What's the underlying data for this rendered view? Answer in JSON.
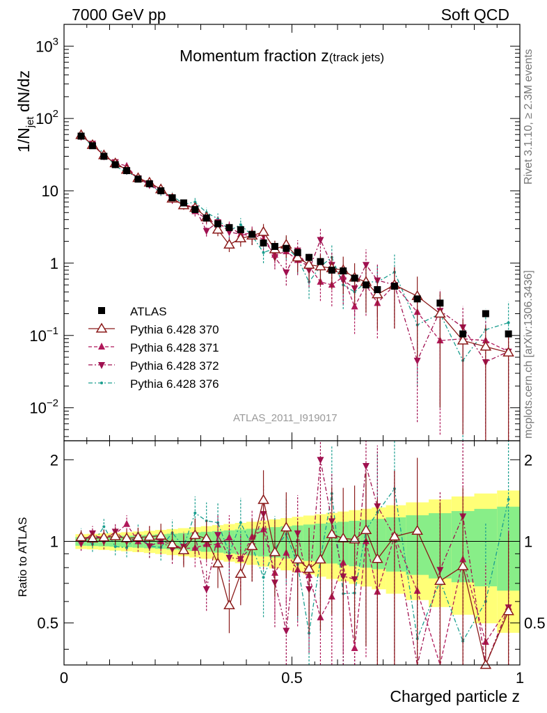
{
  "header": {
    "left": "7000 GeV pp",
    "right": "Soft QCD"
  },
  "side": {
    "rivet": "Rivet 3.1.10, ≥ 2.3M events",
    "mcplots": "mcplots.cern.ch [arXiv:1306.3436]"
  },
  "chart_data": {
    "type": "scatter",
    "title": "Momentum fraction z",
    "title_sub": "(track jets)",
    "ylabel_main": "1/N",
    "ylabel_sub": "jet",
    "ylabel_tail": " dN/dz",
    "ylabel_ratio": "Ratio to ATLAS",
    "xlabel": "Charged particle z",
    "watermark": "ATLAS_2011_I919017",
    "xlim": [
      0,
      1
    ],
    "ylim_main": [
      0.0035,
      2000
    ],
    "ylim_ratio": [
      0.35,
      2.35
    ],
    "y_scale": "log",
    "x_ticks": [
      "0",
      "0.5",
      "1"
    ],
    "y_ticks_main": [
      {
        "v": 0.01,
        "base": "10",
        "exp": "−2"
      },
      {
        "v": 0.1,
        "base": "10",
        "exp": "−1"
      },
      {
        "v": 1,
        "label": "1"
      },
      {
        "v": 10,
        "label": "10"
      },
      {
        "v": 100,
        "base": "10",
        "exp": "2"
      },
      {
        "v": 1000,
        "base": "10",
        "exp": "3"
      }
    ],
    "y_ticks_ratio": [
      "0.5",
      "1",
      "2"
    ],
    "legend_position": "lower-left",
    "x": [
      0.0375,
      0.0625,
      0.0875,
      0.1125,
      0.1375,
      0.1625,
      0.1875,
      0.2125,
      0.2375,
      0.2625,
      0.2875,
      0.3125,
      0.3375,
      0.3625,
      0.3875,
      0.4125,
      0.4375,
      0.4625,
      0.4875,
      0.5125,
      0.5375,
      0.5625,
      0.5875,
      0.6125,
      0.6375,
      0.6625,
      0.6875,
      0.725,
      0.775,
      0.825,
      0.875,
      0.925,
      0.975
    ],
    "series": [
      {
        "name": "ATLAS",
        "color": "#000000",
        "marker": "square",
        "values": [
          57,
          42,
          30,
          23,
          19,
          14.5,
          12.5,
          10,
          8,
          6.8,
          5.5,
          4.2,
          3.5,
          3.1,
          2.9,
          2.5,
          1.9,
          1.7,
          1.6,
          1.4,
          1.2,
          1.05,
          0.8,
          0.78,
          0.62,
          0.5,
          0.43,
          0.48,
          0.32,
          0.28,
          0.105,
          0.2,
          0.105
        ]
      },
      {
        "name": "Pythia 6.428 370",
        "color": "#8b1a1a",
        "marker": "open-triangle-up",
        "line": "solid",
        "values": [
          59,
          43,
          31,
          24,
          19.5,
          15,
          13,
          10.5,
          7.8,
          6.3,
          5.8,
          4.3,
          2.9,
          1.8,
          2.2,
          2.4,
          2.7,
          1.55,
          1.8,
          1.2,
          0.95,
          0.9,
          0.85,
          0.8,
          0.63,
          0.55,
          0.37,
          0.5,
          0.35,
          0.2,
          0.085,
          0.07,
          0.058
        ]
      },
      {
        "name": "Pythia 6.428 371",
        "color": "#b0185a",
        "marker": "triangle-up",
        "line": "dashed",
        "values": [
          58,
          44,
          31,
          24.5,
          22,
          14.5,
          13,
          10,
          7.8,
          6.4,
          5.2,
          4.1,
          3.4,
          3.2,
          2.5,
          2.6,
          2.1,
          1.3,
          1.45,
          1.1,
          0.9,
          0.55,
          0.5,
          0.65,
          0.25,
          0.5,
          0.28,
          0.5,
          0.21,
          0.085,
          0.09,
          0.085,
          0.06
        ]
      },
      {
        "name": "Pythia 6.428 372",
        "color": "#a01050",
        "marker": "triangle-down",
        "line": "dashdot",
        "values": [
          56,
          45,
          30,
          25,
          19,
          15,
          12,
          10,
          7.5,
          6.5,
          5.8,
          2.8,
          3.7,
          2.7,
          2.5,
          2.4,
          2.4,
          1.2,
          0.75,
          1.5,
          0.8,
          2.1,
          0.95,
          0.58,
          0.45,
          0.95,
          0.58,
          0.5,
          0.045,
          0.22,
          0.13,
          0.043,
          0.06
        ]
      },
      {
        "name": "Pythia 6.428 376",
        "color": "#1a9e8f",
        "marker": "star",
        "line": "dashdot",
        "values": [
          60,
          41,
          34,
          22,
          18,
          15.5,
          12,
          9.5,
          8.6,
          6.5,
          7,
          5,
          4.1,
          2.8,
          3.4,
          2.4,
          1.4,
          1.6,
          1.7,
          1.15,
          0.55,
          0.9,
          1.2,
          0.5,
          0.4,
          0.55,
          0.55,
          0.75,
          0.14,
          0.2,
          0.045,
          0.12,
          0.15
        ]
      }
    ]
  }
}
